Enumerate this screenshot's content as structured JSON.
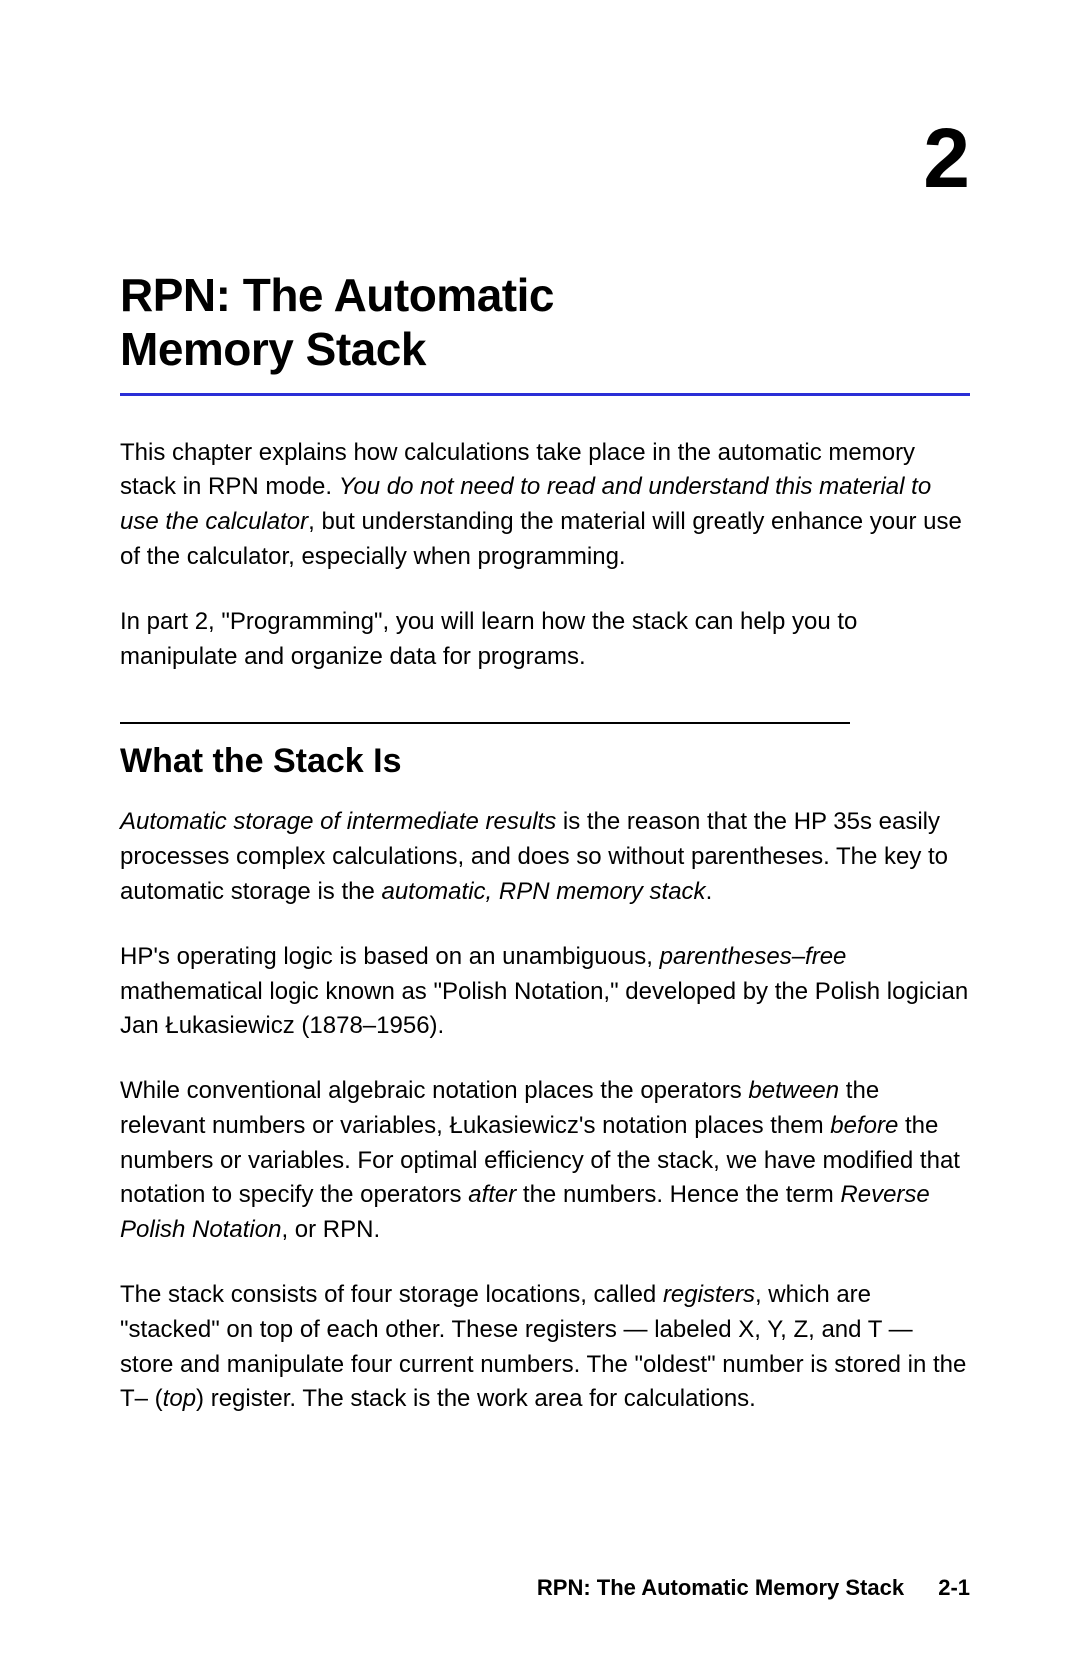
{
  "colors": {
    "accent_blue": "#2a2fd6",
    "text": "#000000",
    "bg": "#ffffff"
  },
  "chapter": {
    "number": "2",
    "title_line1": "RPN: The Automatic",
    "title_line2": "Memory Stack"
  },
  "intro": {
    "p1_pre": "This chapter explains how calculations take place in the automatic memory stack in RPN mode. ",
    "p1_italic": "You do not need to read and understand this material to use the calculator",
    "p1_post": ", but understanding the material will greatly enhance your use of the calculator, especially when programming.",
    "p2": "In part 2, \"Programming\", you will learn how the stack can help you to manipulate and organize data for programs."
  },
  "section": {
    "title": "What the Stack Is",
    "p1_italic1": "Automatic storage of intermediate results",
    "p1_mid": " is the reason that the HP 35s easily processes complex calculations, and does so without parentheses. The key to automatic storage is the ",
    "p1_italic2": "automatic, RPN memory stack",
    "p1_end": ".",
    "p2_pre": "HP's operating logic is based on an unambiguous, ",
    "p2_italic": "parentheses–free",
    "p2_post": " mathematical logic known as \"Polish Notation,\" developed by the Polish logician Jan Łukasiewicz (1878–1956).",
    "p3_pre": "While conventional algebraic notation places the operators ",
    "p3_italic1": "between",
    "p3_mid1": " the relevant numbers or variables, Łukasiewicz's notation places them ",
    "p3_italic2": "before",
    "p3_mid2": " the numbers or variables. For optimal efficiency of the stack, we have modified that notation to specify the operators ",
    "p3_italic3": "after",
    "p3_mid3": " the numbers. Hence the term ",
    "p3_italic4": "Reverse Polish Notation",
    "p3_end": ", or RPN.",
    "p4_pre": "The stack consists of four storage locations, called ",
    "p4_italic1": "registers",
    "p4_mid1": ", which are \"stacked\" on top of each other. These registers — labeled X, Y, Z, and T — store and manipulate four current numbers. The \"oldest\" number is stored in the T– (",
    "p4_italic2": "top",
    "p4_end": ") register. The stack is the work area for calculations."
  },
  "footer": {
    "title": "RPN: The Automatic Memory Stack",
    "page": "2-1"
  }
}
